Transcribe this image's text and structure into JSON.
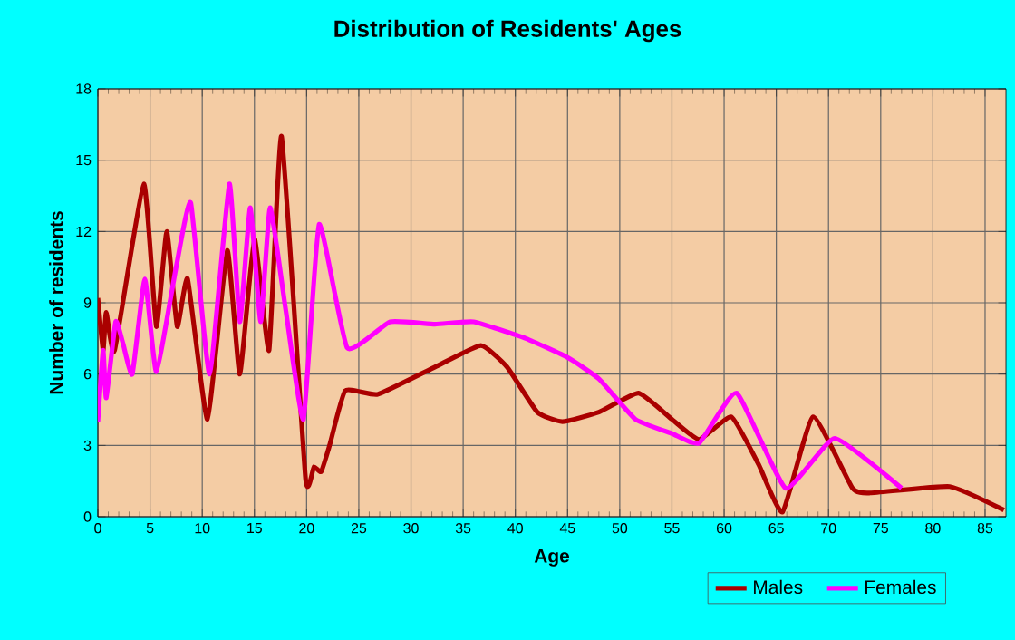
{
  "chart_data": {
    "type": "line",
    "title": "Distribution of Residents' Ages",
    "xlabel": "Age",
    "ylabel": "Number of residents",
    "xlim": [
      0,
      87
    ],
    "xticks": [
      0,
      5,
      10,
      15,
      20,
      25,
      30,
      35,
      40,
      45,
      50,
      55,
      60,
      65,
      70,
      75,
      80,
      85
    ],
    "ylim": [
      0,
      18
    ],
    "yticks": [
      0,
      3,
      6,
      9,
      12,
      15,
      18
    ],
    "grid": true,
    "legend": "bottom right",
    "marker": "none",
    "line_style": "solid",
    "series": [
      {
        "name": "Males",
        "color": "#aa0000",
        "x": [
          0,
          0.5,
          0.8,
          1.6,
          4.4,
          5.6,
          6.6,
          7.6,
          8.6,
          10.5,
          12.4,
          13.6,
          15.0,
          16.4,
          17.6,
          19.9,
          20.7,
          21.4,
          22.2,
          23.7,
          26.8,
          32.3,
          36.7,
          39.2,
          42.1,
          44.5,
          48,
          51.8,
          55,
          57.6,
          60.7,
          63.3,
          65.6,
          68.5,
          72.3,
          74,
          81.6,
          86.8
        ],
        "values": [
          9.2,
          7,
          8.6,
          7,
          14,
          8,
          12,
          8,
          10,
          4.1,
          11.2,
          6,
          11.7,
          7,
          16,
          1.6,
          2.1,
          1.9,
          3,
          5.3,
          5.15,
          6.3,
          7.2,
          6.3,
          4.4,
          4,
          4.4,
          5.2,
          4.1,
          3.25,
          4.2,
          2.2,
          0.2,
          4.2,
          1.2,
          1,
          1.27,
          0.28
        ]
      },
      {
        "name": "Females",
        "color": "#ff00ff",
        "x": [
          0,
          0.5,
          0.8,
          1.7,
          2.4,
          3.3,
          4.5,
          5.6,
          7.5,
          8.9,
          10.7,
          12.6,
          13.6,
          14.6,
          15.6,
          16.5,
          18,
          19.7,
          21.2,
          23.9,
          28,
          32.3,
          36,
          41,
          45,
          48,
          51.5,
          55,
          57.6,
          61.2,
          65.9,
          70.6,
          77
        ],
        "values": [
          4,
          7,
          5,
          8.2,
          7.3,
          6,
          10,
          6.1,
          10.5,
          13.2,
          6,
          14,
          8.2,
          13,
          8.2,
          13,
          8.7,
          4.1,
          12.3,
          7.1,
          8.2,
          8.1,
          8.2,
          7.5,
          6.7,
          5.8,
          4.1,
          3.5,
          3.1,
          5.2,
          1.2,
          3.3,
          1.2
        ]
      }
    ]
  }
}
